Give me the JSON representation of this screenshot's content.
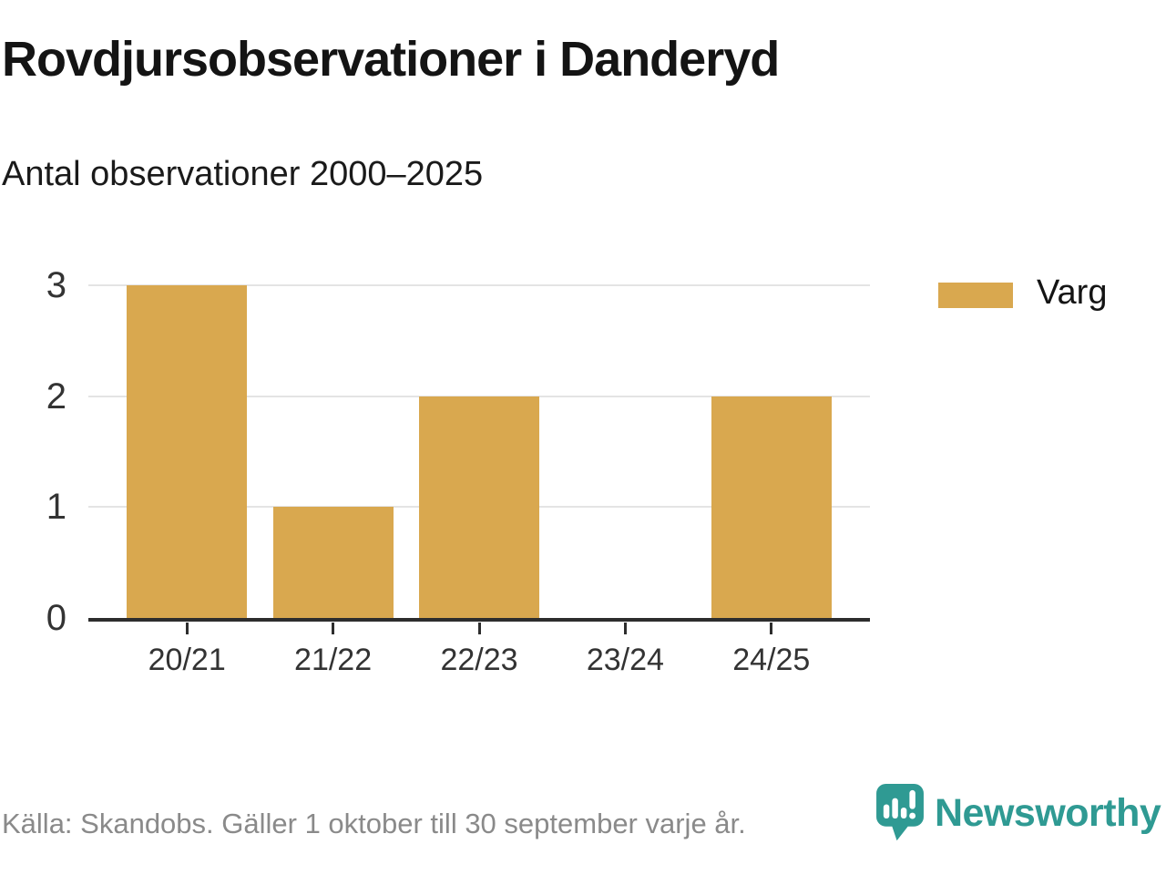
{
  "title": "Rovdjursobservationer i Danderyd",
  "subtitle": "Antal observationer 2000–2025",
  "legend": {
    "label": "Varg",
    "swatch_color": "#d9a84f",
    "position": "right"
  },
  "footer": {
    "source_text": "Källa: Skandobs. Gäller 1 oktober till 30 september varje år.",
    "brand_name": "Newsworthy",
    "brand_logo_icon": "speech-bubble-bar-chart-icon",
    "brand_color": "#2f9a93"
  },
  "chart_data": {
    "type": "bar",
    "title": "Rovdjursobservationer i Danderyd",
    "subtitle": "Antal observationer 2000–2025",
    "categories": [
      "20/21",
      "21/22",
      "22/23",
      "23/24",
      "24/25"
    ],
    "series": [
      {
        "name": "Varg",
        "values": [
          3,
          1,
          2,
          0,
          2
        ]
      }
    ],
    "xlabel": "",
    "ylabel": "",
    "ylim": [
      0,
      3
    ],
    "yticks": [
      0,
      1,
      2,
      3
    ],
    "grid": true,
    "legend_position": "right",
    "bar_color": "#d9a84f",
    "gridline_color": "#e4e4e4",
    "axis_color": "#2d2d2d"
  }
}
